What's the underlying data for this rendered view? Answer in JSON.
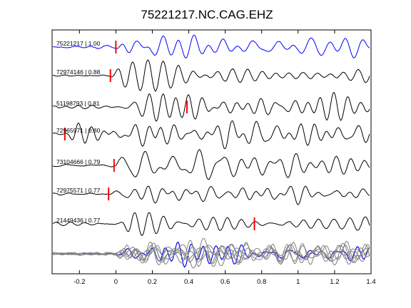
{
  "chart_data": {
    "type": "line",
    "title": "75221217.NC.CAG.EHZ",
    "xlabel": "",
    "ylabel": "",
    "xlim": [
      -0.35,
      1.4
    ],
    "x_ticks": [
      -0.2,
      0,
      0.2,
      0.4,
      0.6,
      0.8,
      1,
      1.2,
      1.4
    ],
    "x_tick_labels": [
      "-0.2",
      "0",
      "0.2",
      "0.4",
      "0.6",
      "0.8",
      "1",
      "1.2",
      "1.4"
    ],
    "grid": false,
    "colors": {
      "reference_trace": "#0000ff",
      "other_trace": "#000000",
      "overlay_trace": "#808080",
      "pick_marker": "#ff0000"
    },
    "traces": [
      {
        "label": "75221217 | 1.00",
        "pick_time": 0.0,
        "color": "#0000ff"
      },
      {
        "label": "72974146 | 0.88",
        "pick_time": -0.03,
        "color": "#000000"
      },
      {
        "label": "51198793 | 0.81",
        "pick_time": 0.39,
        "color": "#000000"
      },
      {
        "label": "72965971 | 0.80",
        "pick_time": -0.28,
        "color": "#000000"
      },
      {
        "label": "73104666 | 0.79",
        "pick_time": -0.01,
        "color": "#000000"
      },
      {
        "label": "72975571 | 0.77",
        "pick_time": -0.04,
        "color": "#000000"
      },
      {
        "label": "21449436 | 0.77",
        "pick_time": 0.76,
        "color": "#000000"
      }
    ],
    "stacked_overlay": true
  }
}
